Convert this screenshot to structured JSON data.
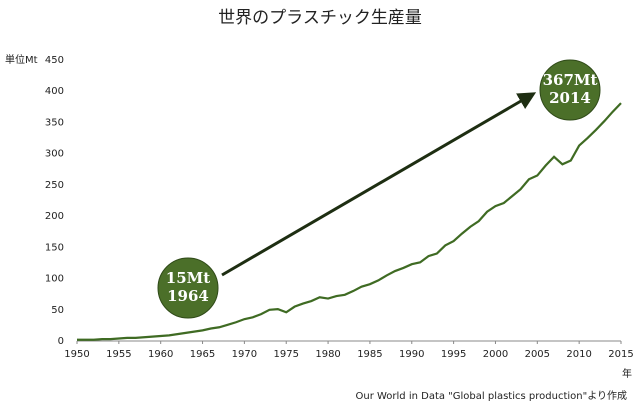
{
  "chart_data": {
    "type": "line",
    "title": "世界のプラスチック生産量",
    "y_label": "単位Mt",
    "x_label": "年",
    "source": "Our World in Data \"Global plastics production\"より作成",
    "x": [
      1950,
      1951,
      1952,
      1953,
      1954,
      1955,
      1956,
      1957,
      1958,
      1959,
      1960,
      1961,
      1962,
      1963,
      1964,
      1965,
      1966,
      1967,
      1968,
      1969,
      1970,
      1971,
      1972,
      1973,
      1974,
      1975,
      1976,
      1977,
      1978,
      1979,
      1980,
      1981,
      1982,
      1983,
      1984,
      1985,
      1986,
      1987,
      1988,
      1989,
      1990,
      1991,
      1992,
      1993,
      1994,
      1995,
      1996,
      1997,
      1998,
      1999,
      2000,
      2001,
      2002,
      2003,
      2004,
      2005,
      2006,
      2007,
      2008,
      2009,
      2010,
      2011,
      2012,
      2013,
      2014,
      2015
    ],
    "values": [
      2,
      2,
      2,
      3,
      3,
      4,
      5,
      5,
      6,
      7,
      8,
      9,
      11,
      13,
      15,
      17,
      20,
      22,
      26,
      30,
      35,
      38,
      43,
      50,
      51,
      46,
      55,
      60,
      64,
      70,
      68,
      72,
      74,
      80,
      87,
      91,
      97,
      105,
      112,
      117,
      123,
      126,
      136,
      140,
      153,
      160,
      172,
      183,
      192,
      207,
      216,
      221,
      232,
      243,
      259,
      265,
      281,
      295,
      283,
      289,
      313,
      325,
      338,
      352,
      367,
      381
    ],
    "color": "#3f6b23",
    "xlim": [
      1950,
      2015
    ],
    "xticks": [
      1950,
      1955,
      1960,
      1965,
      1970,
      1975,
      1980,
      1985,
      1990,
      1995,
      2000,
      2005,
      2010,
      2015
    ],
    "ylim": [
      0,
      450
    ],
    "yticks": [
      0,
      50,
      100,
      150,
      200,
      250,
      300,
      350,
      400,
      450
    ],
    "grid": false,
    "annotations": [
      {
        "lines": [
          "15Mt",
          "1964"
        ]
      },
      {
        "lines": [
          "367Mt",
          "2014"
        ]
      }
    ]
  }
}
